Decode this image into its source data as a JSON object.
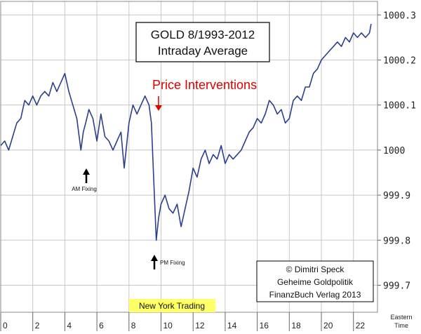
{
  "chart_data": {
    "type": "line",
    "title_line1": "GOLD 8/1993-2012",
    "title_line2": "Intraday Average",
    "xlabel_line1": "Eastern",
    "xlabel_line2": "Time",
    "xlim": [
      0,
      23.5
    ],
    "ylim": [
      999.64,
      1000.33
    ],
    "x_ticks": [
      0,
      2,
      4,
      6,
      8,
      10,
      12,
      14,
      16,
      18,
      20,
      22
    ],
    "x_tick_labels": [
      "0",
      "2",
      "4",
      "6",
      "8",
      "10",
      "12",
      "14",
      "16",
      "18",
      "20",
      "22"
    ],
    "y_ticks": [
      999.7,
      999.8,
      999.9,
      1000,
      1000.1,
      1000.2,
      1000.3
    ],
    "y_tick_labels": [
      "999.7",
      "999.8",
      "999.9",
      "1000",
      "1000.1",
      "1000.2",
      "1000.3"
    ],
    "grid": true,
    "annotations": {
      "interventions": "Price Interventions",
      "am_fixing": "AM Fixing",
      "pm_fixing": "PM Fixing",
      "ny_trading": "New York Trading",
      "source_line1": "© Dimitri Speck",
      "source_line2": "Geheime Goldpolitik",
      "source_line3": "FinanzBuch Verlag 2013"
    },
    "ny_trading_range": [
      8.33,
      11.6
    ],
    "series_color": "#2b3f8f",
    "intervention_color": "#e00000",
    "highlight_color": "#ffff66",
    "series": [
      {
        "x": [
          0,
          0.25,
          0.5,
          0.75,
          1,
          1.25,
          1.5,
          1.75,
          2,
          2.25,
          2.5,
          2.75,
          3,
          3.25,
          3.5,
          3.75,
          4,
          4.25,
          4.5,
          4.75,
          5,
          5.15,
          5.3,
          5.5,
          5.75,
          6,
          6.25,
          6.5,
          6.75,
          7,
          7.25,
          7.5,
          7.7,
          7.85,
          8,
          8.25,
          8.5,
          8.75,
          9,
          9.25,
          9.4,
          9.55,
          9.7,
          9.85,
          10,
          10.25,
          10.5,
          10.75,
          11,
          11.25,
          11.5,
          11.75,
          12,
          12.25,
          12.5,
          12.75,
          13,
          13.25,
          13.5,
          13.75,
          14,
          14.25,
          14.5,
          14.75,
          15,
          15.25,
          15.5,
          15.75,
          16,
          16.25,
          16.5,
          16.75,
          17,
          17.25,
          17.5,
          17.75,
          18,
          18.25,
          18.5,
          18.75,
          19,
          19.25,
          19.5,
          19.75,
          20,
          20.25,
          20.5,
          20.75,
          21,
          21.25,
          21.5,
          21.75,
          22,
          22.25,
          22.5,
          22.75,
          23,
          23.1
        ],
        "y": [
          1000.01,
          1000.02,
          1000.0,
          1000.03,
          1000.06,
          1000.07,
          1000.11,
          1000.1,
          1000.12,
          1000.1,
          1000.12,
          1000.13,
          1000.12,
          1000.15,
          1000.13,
          1000.15,
          1000.17,
          1000.13,
          1000.1,
          1000.07,
          1000.0,
          1000.04,
          1000.06,
          1000.09,
          1000.07,
          1000.02,
          1000.08,
          1000.03,
          1000.02,
          1000.0,
          1000.02,
          1000.04,
          999.96,
          1000.01,
          1000.06,
          1000.1,
          1000.08,
          1000.1,
          1000.12,
          1000.1,
          1000.06,
          999.93,
          999.8,
          999.85,
          999.88,
          999.9,
          999.87,
          999.86,
          999.88,
          999.83,
          999.87,
          999.91,
          999.96,
          999.94,
          999.98,
          1000.0,
          999.97,
          999.99,
          999.98,
          1000.01,
          999.97,
          999.99,
          999.98,
          999.99,
          1000.0,
          1000.02,
          1000.04,
          1000.05,
          1000.07,
          1000.06,
          1000.08,
          1000.11,
          1000.1,
          1000.08,
          1000.09,
          1000.06,
          1000.07,
          1000.11,
          1000.12,
          1000.11,
          1000.14,
          1000.14,
          1000.17,
          1000.18,
          1000.2,
          1000.21,
          1000.22,
          1000.23,
          1000.24,
          1000.23,
          1000.25,
          1000.24,
          1000.26,
          1000.25,
          1000.26,
          1000.25,
          1000.26,
          1000.28
        ]
      }
    ]
  }
}
